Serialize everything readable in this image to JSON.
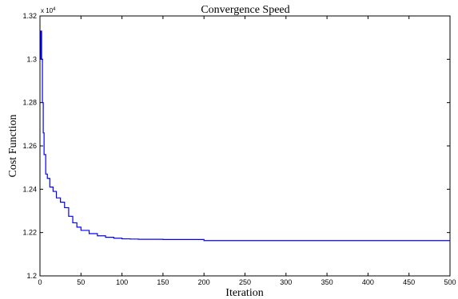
{
  "chart_data": {
    "type": "line",
    "title": "Convergence Speed",
    "xlabel": "Iteration",
    "ylabel": "Cost Function",
    "y_exponent_label": "x 10",
    "y_exponent_power": "4",
    "xlim": [
      0,
      500
    ],
    "ylim": [
      1.2,
      1.32
    ],
    "x_ticks": [
      "0",
      "50",
      "100",
      "150",
      "200",
      "250",
      "300",
      "350",
      "400",
      "450",
      "500"
    ],
    "y_ticks": [
      "1.2",
      "1.22",
      "1.24",
      "1.26",
      "1.28",
      "1.3",
      "1.32"
    ],
    "grid": false,
    "series": [
      {
        "color": "#0000ff",
        "x": [
          0,
          1,
          2,
          3,
          4,
          5,
          7,
          9,
          12,
          16,
          20,
          25,
          30,
          35,
          40,
          45,
          50,
          60,
          70,
          80,
          90,
          100,
          110,
          120,
          150,
          199,
          200,
          250,
          300,
          350,
          400,
          450,
          500
        ],
        "y": [
          1.3,
          1.313,
          1.3,
          1.28,
          1.266,
          1.256,
          1.247,
          1.245,
          1.241,
          1.239,
          1.236,
          1.234,
          1.2315,
          1.2275,
          1.2245,
          1.2225,
          1.221,
          1.2195,
          1.2185,
          1.2178,
          1.2174,
          1.2171,
          1.217,
          1.2169,
          1.2168,
          1.2168,
          1.2163,
          1.2163,
          1.2163,
          1.2163,
          1.2163,
          1.2163,
          1.2163
        ]
      }
    ]
  }
}
